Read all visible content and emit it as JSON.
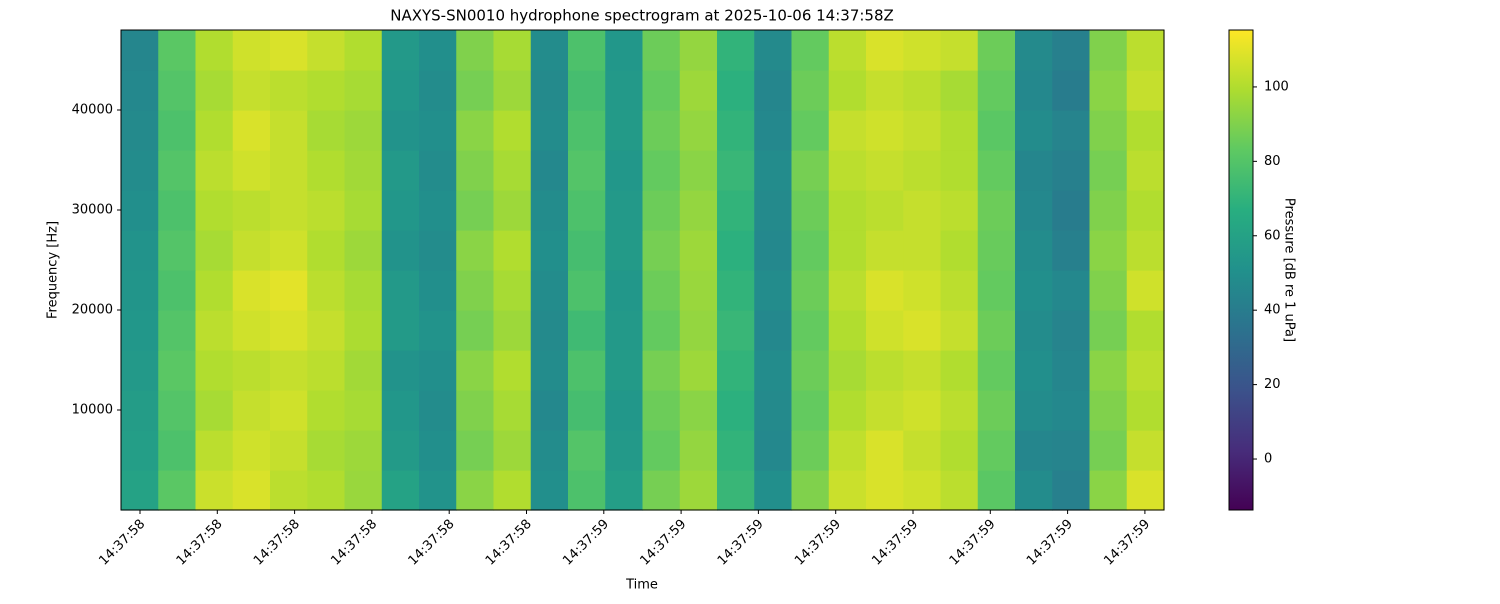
{
  "chart_data": {
    "type": "heatmap",
    "title": "NAXYS-SN0010 hydrophone spectrogram at 2025-10-06 14:37:58Z",
    "xlabel": "Time",
    "ylabel": "Frequency [Hz]",
    "xticks": [
      "14:37:58",
      "14:37:58",
      "14:37:58",
      "14:37:58",
      "14:37:58",
      "14:37:58",
      "14:37:59",
      "14:37:59",
      "14:37:59",
      "14:37:59",
      "14:37:59",
      "14:37:59",
      "14:37:59",
      "14:37:59"
    ],
    "ylim": [
      0,
      48000
    ],
    "yticks": [
      10000,
      20000,
      30000,
      40000
    ],
    "colormap": "viridis",
    "clim": [
      -13.7,
      115.3
    ],
    "colorbar_label": "Pressure [dB re 1 uPa]",
    "colorbar_ticks": [
      0,
      20,
      40,
      60,
      80,
      100
    ],
    "values": [
      [
        60,
        82,
        105,
        108,
        102,
        100,
        95,
        60,
        52,
        92,
        100,
        50,
        78,
        58,
        88,
        96,
        72,
        50,
        90,
        105,
        108,
        106,
        102,
        82,
        48,
        42,
        92,
        108
      ],
      [
        58,
        78,
        102,
        106,
        104,
        98,
        96,
        56,
        50,
        88,
        96,
        48,
        80,
        55,
        84,
        94,
        70,
        46,
        86,
        103,
        108,
        104,
        100,
        84,
        45,
        44,
        88,
        104
      ],
      [
        57,
        80,
        98,
        104,
        106,
        100,
        98,
        54,
        48,
        90,
        98,
        46,
        76,
        54,
        86,
        92,
        68,
        47,
        84,
        100,
        104,
        106,
        102,
        86,
        48,
        46,
        90,
        100
      ],
      [
        55,
        82,
        100,
        102,
        104,
        102,
        97,
        52,
        50,
        92,
        100,
        48,
        78,
        56,
        88,
        96,
        70,
        48,
        86,
        98,
        102,
        104,
        100,
        84,
        50,
        45,
        92,
        102
      ],
      [
        54,
        80,
        102,
        106,
        108,
        104,
        99,
        56,
        52,
        88,
        96,
        47,
        74,
        55,
        84,
        94,
        72,
        46,
        84,
        100,
        106,
        108,
        104,
        86,
        48,
        44,
        88,
        100
      ],
      [
        53,
        78,
        100,
        108,
        110,
        102,
        98,
        55,
        50,
        90,
        98,
        48,
        78,
        54,
        86,
        95,
        70,
        48,
        86,
        102,
        108,
        106,
        102,
        84,
        50,
        46,
        90,
        106
      ],
      [
        52,
        80,
        98,
        104,
        106,
        100,
        96,
        52,
        48,
        92,
        100,
        50,
        76,
        56,
        88,
        96,
        68,
        46,
        84,
        100,
        104,
        104,
        100,
        85,
        48,
        42,
        92,
        102
      ],
      [
        50,
        78,
        100,
        102,
        104,
        102,
        98,
        54,
        50,
        88,
        96,
        48,
        78,
        55,
        86,
        94,
        70,
        47,
        86,
        100,
        102,
        104,
        102,
        86,
        46,
        40,
        90,
        100
      ],
      [
        48,
        80,
        102,
        106,
        104,
        100,
        97,
        55,
        48,
        90,
        98,
        46,
        80,
        54,
        84,
        92,
        72,
        48,
        88,
        102,
        104,
        102,
        100,
        84,
        45,
        42,
        88,
        102
      ],
      [
        47,
        78,
        100,
        108,
        104,
        98,
        96,
        52,
        50,
        92,
        100,
        48,
        78,
        56,
        86,
        94,
        70,
        46,
        84,
        104,
        106,
        104,
        100,
        82,
        48,
        44,
        90,
        100
      ],
      [
        46,
        80,
        98,
        104,
        102,
        100,
        98,
        54,
        48,
        88,
        96,
        47,
        76,
        55,
        84,
        96,
        68,
        45,
        86,
        100,
        104,
        102,
        98,
        84,
        46,
        40,
        92,
        104
      ],
      [
        45,
        82,
        100,
        106,
        108,
        104,
        100,
        55,
        50,
        90,
        98,
        48,
        78,
        54,
        86,
        94,
        70,
        47,
        84,
        102,
        108,
        106,
        104,
        86,
        47,
        42,
        90,
        102
      ]
    ]
  }
}
